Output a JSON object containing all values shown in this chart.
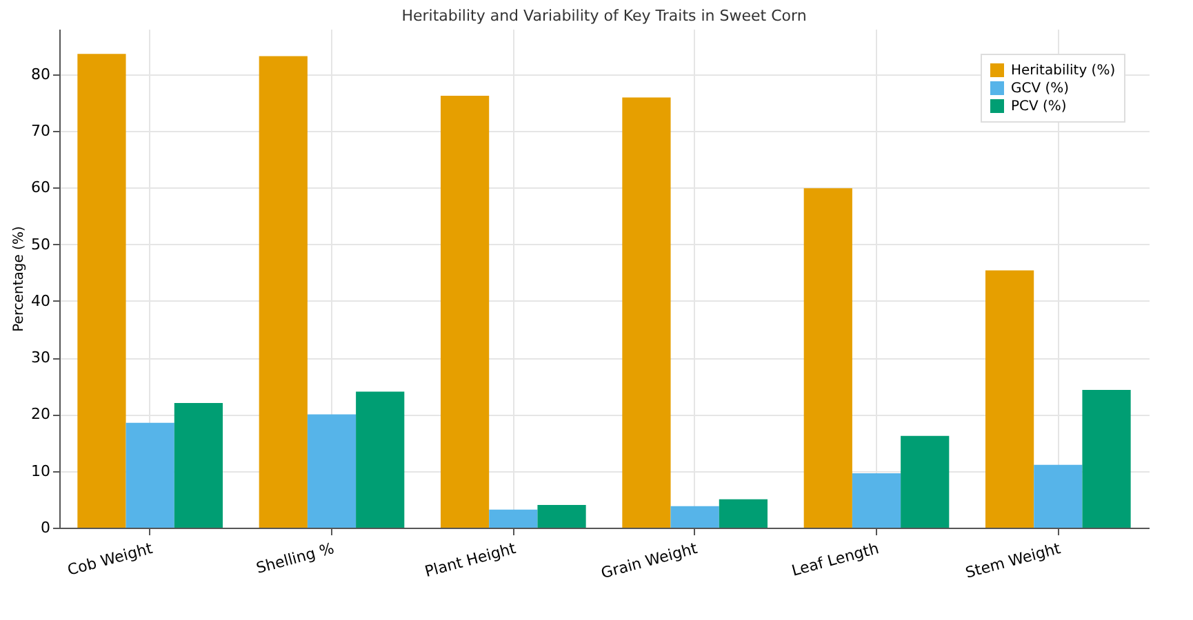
{
  "chart_data": {
    "type": "bar",
    "title": "Heritability and Variability of Key Traits in Sweet Corn",
    "ylabel": "Percentage (%)",
    "categories": [
      "Cob Weight",
      "Shelling %",
      "Plant Height",
      "Grain Weight",
      "Leaf Length",
      "Stem Weight"
    ],
    "series": [
      {
        "name": "Heritability (%)",
        "color": "#e69f00",
        "values": [
          83.6,
          83.2,
          76.2,
          75.9,
          59.9,
          45.4
        ]
      },
      {
        "name": "GCV (%)",
        "color": "#56b4e9",
        "values": [
          18.5,
          20,
          3.2,
          3.8,
          9.6,
          11.1
        ]
      },
      {
        "name": "PCV (%)",
        "color": "#009e73",
        "values": [
          22,
          24,
          4,
          5,
          16.2,
          24.3
        ]
      }
    ],
    "ylim": [
      0,
      88
    ],
    "yticks": [
      0,
      10,
      20,
      30,
      40,
      50,
      60,
      70,
      80
    ],
    "grid": true,
    "legend": "top right"
  }
}
